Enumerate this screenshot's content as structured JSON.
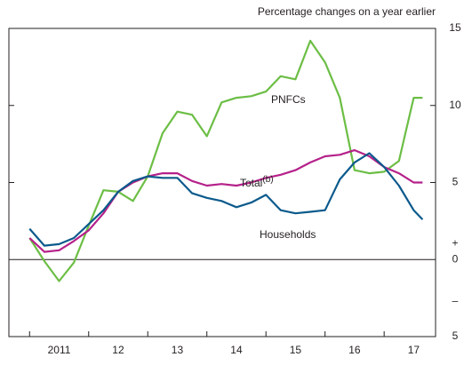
{
  "chart_data": {
    "type": "line",
    "subtitle": "Percentage changes on a year earlier",
    "x": [
      2011.0,
      2011.25,
      2011.5,
      2011.75,
      2012.0,
      2012.25,
      2012.5,
      2012.75,
      2013.0,
      2013.25,
      2013.5,
      2013.75,
      2014.0,
      2014.25,
      2014.5,
      2014.75,
      2015.0,
      2015.25,
      2015.5,
      2015.75,
      2016.0,
      2016.25,
      2016.5,
      2016.75,
      2017.0,
      2017.25,
      2017.5,
      2017.65
    ],
    "xlim": [
      2010.65,
      2017.87
    ],
    "xticks": [
      {
        "value": 2011.5,
        "label": "2011"
      },
      {
        "value": 2012.5,
        "label": "12"
      },
      {
        "value": 2013.5,
        "label": "13"
      },
      {
        "value": 2014.5,
        "label": "14"
      },
      {
        "value": 2015.5,
        "label": "15"
      },
      {
        "value": 2016.5,
        "label": "16"
      },
      {
        "value": 2017.5,
        "label": "17"
      }
    ],
    "ylim": [
      -5,
      15
    ],
    "yticks": [
      {
        "value": -5,
        "label": "5"
      },
      0,
      5,
      10,
      15
    ],
    "sign_labels": [
      "+",
      "–"
    ],
    "series": [
      {
        "name": "PNFCs",
        "color": "#6cbe45",
        "values": [
          1.4,
          -0.1,
          -1.4,
          -0.2,
          2.2,
          4.5,
          4.4,
          3.8,
          5.4,
          8.2,
          9.6,
          9.4,
          8.0,
          10.2,
          10.5,
          10.6,
          10.9,
          11.9,
          11.7,
          14.2,
          12.8,
          10.5,
          5.8,
          5.6,
          5.7,
          6.4,
          10.5,
          10.5
        ]
      },
      {
        "name": "Total",
        "name_note": "(b)",
        "color": "#b5218a",
        "values": [
          1.4,
          0.5,
          0.6,
          1.2,
          1.9,
          3.0,
          4.4,
          5.0,
          5.4,
          5.6,
          5.6,
          5.1,
          4.8,
          4.9,
          4.8,
          5.0,
          5.3,
          5.5,
          5.8,
          6.3,
          6.7,
          6.8,
          7.1,
          6.7,
          6.0,
          5.6,
          5.0,
          5.0
        ]
      },
      {
        "name": "Households",
        "color": "#0b5a8c",
        "values": [
          2.0,
          0.9,
          1.0,
          1.4,
          2.3,
          3.2,
          4.4,
          5.1,
          5.4,
          5.3,
          5.3,
          4.3,
          4.0,
          3.8,
          3.4,
          3.7,
          4.2,
          3.2,
          3.0,
          3.1,
          3.2,
          5.2,
          6.3,
          6.9,
          6.0,
          4.8,
          3.2,
          2.6
        ]
      }
    ]
  }
}
